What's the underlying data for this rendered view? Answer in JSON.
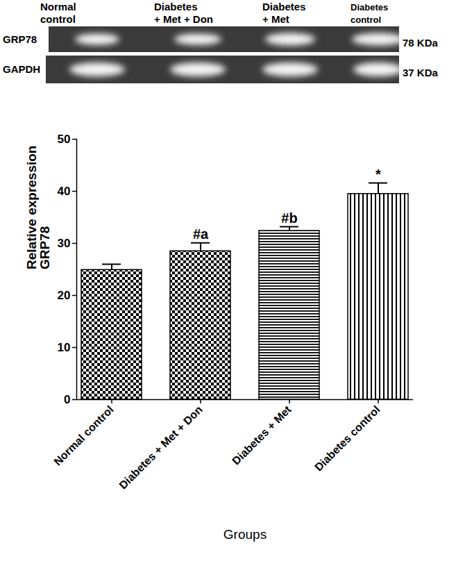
{
  "chart_data": {
    "type": "bar",
    "categories": [
      "Normal control",
      "Diabetes + Met + Don",
      "Diabetes + Met",
      "Diabetes control"
    ],
    "values": [
      24.9,
      28.5,
      32.4,
      39.5
    ],
    "errors": [
      1.1,
      1.6,
      0.8,
      2.1
    ],
    "annotations": [
      {
        "category": "Diabetes + Met + Don",
        "text": "#a"
      },
      {
        "category": "Diabetes + Met",
        "text": "#b"
      },
      {
        "category": "Diabetes control",
        "text": "*"
      }
    ],
    "y_label": "Relative expression GRP78",
    "x_label": "Groups",
    "ylim": [
      0,
      50
    ],
    "yticks": [
      0,
      10,
      20,
      30,
      40,
      50
    ]
  },
  "blot": {
    "lanes": [
      [
        "Normal",
        "control"
      ],
      [
        "Diabetes",
        "+ Met + Don"
      ],
      [
        "Diabetes",
        "+ Met"
      ],
      [
        "Diabetes",
        "control"
      ]
    ],
    "rows": [
      {
        "label": "GRP78",
        "size": "78 KDa"
      },
      {
        "label": "GAPDH",
        "size": "37 KDa"
      }
    ]
  }
}
